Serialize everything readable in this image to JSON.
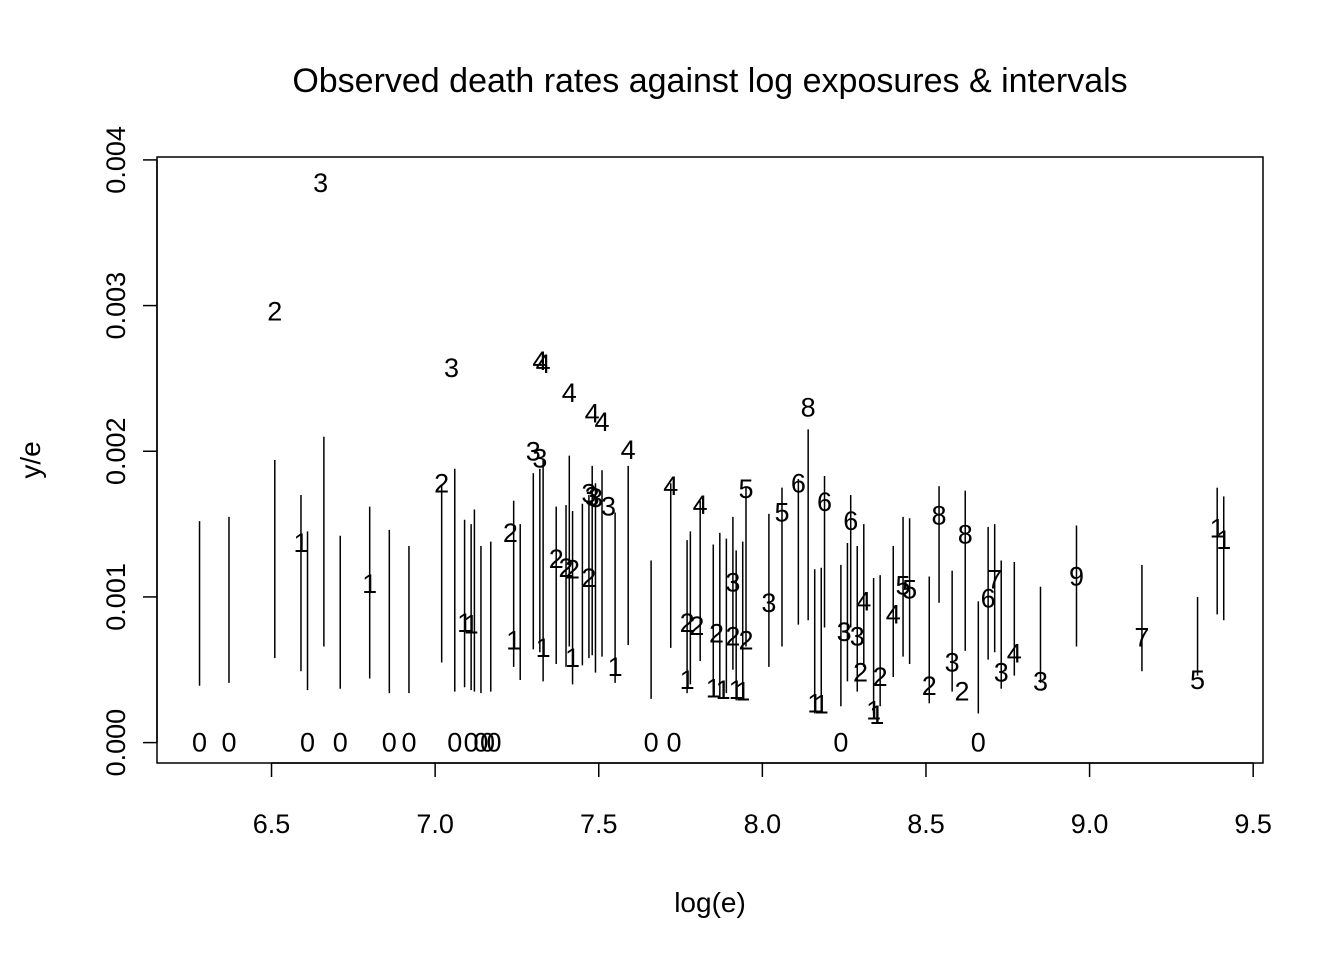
{
  "chart_data": {
    "type": "scatter",
    "title": "Observed death rates against log exposures & intervals",
    "xlabel": "log(e)",
    "ylabel": "y/e",
    "xlim": [
      6.15,
      9.53
    ],
    "ylim": [
      -0.00014,
      0.00402
    ],
    "x_ticks": [
      6.5,
      7.0,
      7.5,
      8.0,
      8.5,
      9.0,
      9.5
    ],
    "x_tick_labels": [
      "6.5",
      "7.0",
      "7.5",
      "8.0",
      "8.5",
      "9.0",
      "9.5"
    ],
    "y_ticks": [
      0.0,
      0.001,
      0.002,
      0.003,
      0.004
    ],
    "y_tick_labels": [
      "0.000",
      "0.001",
      "0.002",
      "0.003",
      "0.004"
    ],
    "grid": false,
    "points": [
      {
        "x": 6.28,
        "y": 0.0,
        "label": "0"
      },
      {
        "x": 6.37,
        "y": 0.0,
        "label": "0"
      },
      {
        "x": 6.61,
        "y": 0.0,
        "label": "0"
      },
      {
        "x": 6.71,
        "y": 0.0,
        "label": "0"
      },
      {
        "x": 6.86,
        "y": 0.0,
        "label": "0"
      },
      {
        "x": 6.92,
        "y": 0.0,
        "label": "0"
      },
      {
        "x": 7.06,
        "y": 0.0,
        "label": "0"
      },
      {
        "x": 7.11,
        "y": 0.0,
        "label": "0"
      },
      {
        "x": 7.14,
        "y": 0.0,
        "label": "0"
      },
      {
        "x": 7.16,
        "y": 0.0,
        "label": "0"
      },
      {
        "x": 7.18,
        "y": 0.0,
        "label": "0"
      },
      {
        "x": 7.66,
        "y": 0.0,
        "label": "0"
      },
      {
        "x": 7.73,
        "y": 0.0,
        "label": "0"
      },
      {
        "x": 8.24,
        "y": 0.0,
        "label": "0"
      },
      {
        "x": 8.66,
        "y": 0.0,
        "label": "0"
      },
      {
        "x": 6.59,
        "y": 0.00137,
        "label": "1"
      },
      {
        "x": 6.8,
        "y": 0.00109,
        "label": "1"
      },
      {
        "x": 7.09,
        "y": 0.00082,
        "label": "1"
      },
      {
        "x": 7.11,
        "y": 0.00081,
        "label": "1"
      },
      {
        "x": 7.24,
        "y": 0.0007,
        "label": "1"
      },
      {
        "x": 7.33,
        "y": 0.00065,
        "label": "1"
      },
      {
        "x": 7.42,
        "y": 0.00058,
        "label": "1"
      },
      {
        "x": 7.55,
        "y": 0.00052,
        "label": "1"
      },
      {
        "x": 7.77,
        "y": 0.00043,
        "label": "1"
      },
      {
        "x": 7.85,
        "y": 0.00037,
        "label": "1"
      },
      {
        "x": 7.88,
        "y": 0.00036,
        "label": "1"
      },
      {
        "x": 7.92,
        "y": 0.00036,
        "label": "1"
      },
      {
        "x": 7.94,
        "y": 0.00035,
        "label": "1"
      },
      {
        "x": 8.16,
        "y": 0.00027,
        "label": "1"
      },
      {
        "x": 8.18,
        "y": 0.00026,
        "label": "1"
      },
      {
        "x": 8.34,
        "y": 0.00022,
        "label": "1"
      },
      {
        "x": 8.35,
        "y": 0.00019,
        "label": "1"
      },
      {
        "x": 9.39,
        "y": 0.00147,
        "label": "1"
      },
      {
        "x": 9.41,
        "y": 0.00139,
        "label": "1"
      },
      {
        "x": 6.51,
        "y": 0.00296,
        "label": "2"
      },
      {
        "x": 7.02,
        "y": 0.00178,
        "label": "2"
      },
      {
        "x": 7.23,
        "y": 0.00144,
        "label": "2"
      },
      {
        "x": 7.37,
        "y": 0.00126,
        "label": "2"
      },
      {
        "x": 7.4,
        "y": 0.0012,
        "label": "2"
      },
      {
        "x": 7.42,
        "y": 0.00119,
        "label": "2"
      },
      {
        "x": 7.47,
        "y": 0.00113,
        "label": "2"
      },
      {
        "x": 7.77,
        "y": 0.00082,
        "label": "2"
      },
      {
        "x": 7.8,
        "y": 0.0008,
        "label": "2"
      },
      {
        "x": 7.86,
        "y": 0.00075,
        "label": "2"
      },
      {
        "x": 7.91,
        "y": 0.00073,
        "label": "2"
      },
      {
        "x": 7.95,
        "y": 0.0007,
        "label": "2"
      },
      {
        "x": 8.3,
        "y": 0.00048,
        "label": "2"
      },
      {
        "x": 8.36,
        "y": 0.00045,
        "label": "2"
      },
      {
        "x": 8.51,
        "y": 0.00039,
        "label": "2"
      },
      {
        "x": 8.61,
        "y": 0.00035,
        "label": "2"
      },
      {
        "x": 6.65,
        "y": 0.00384,
        "label": "3"
      },
      {
        "x": 7.05,
        "y": 0.00257,
        "label": "3"
      },
      {
        "x": 7.3,
        "y": 0.002,
        "label": "3"
      },
      {
        "x": 7.32,
        "y": 0.00195,
        "label": "3"
      },
      {
        "x": 7.47,
        "y": 0.00171,
        "label": "3"
      },
      {
        "x": 7.48,
        "y": 0.00169,
        "label": "3"
      },
      {
        "x": 7.49,
        "y": 0.00168,
        "label": "3"
      },
      {
        "x": 7.53,
        "y": 0.00162,
        "label": "3"
      },
      {
        "x": 7.91,
        "y": 0.0011,
        "label": "3"
      },
      {
        "x": 8.02,
        "y": 0.00096,
        "label": "3"
      },
      {
        "x": 8.25,
        "y": 0.00076,
        "label": "3"
      },
      {
        "x": 8.29,
        "y": 0.00073,
        "label": "3"
      },
      {
        "x": 8.58,
        "y": 0.00055,
        "label": "3"
      },
      {
        "x": 8.73,
        "y": 0.00048,
        "label": "3"
      },
      {
        "x": 8.85,
        "y": 0.00042,
        "label": "3"
      },
      {
        "x": 7.32,
        "y": 0.00262,
        "label": "4"
      },
      {
        "x": 7.33,
        "y": 0.0026,
        "label": "4"
      },
      {
        "x": 7.41,
        "y": 0.0024,
        "label": "4"
      },
      {
        "x": 7.48,
        "y": 0.00226,
        "label": "4"
      },
      {
        "x": 7.51,
        "y": 0.0022,
        "label": "4"
      },
      {
        "x": 7.59,
        "y": 0.00201,
        "label": "4"
      },
      {
        "x": 7.72,
        "y": 0.00176,
        "label": "4"
      },
      {
        "x": 7.81,
        "y": 0.00163,
        "label": "4"
      },
      {
        "x": 8.31,
        "y": 0.00097,
        "label": "4"
      },
      {
        "x": 8.4,
        "y": 0.00088,
        "label": "4"
      },
      {
        "x": 8.77,
        "y": 0.00061,
        "label": "4"
      },
      {
        "x": 7.95,
        "y": 0.00174,
        "label": "5"
      },
      {
        "x": 8.06,
        "y": 0.00158,
        "label": "5"
      },
      {
        "x": 8.43,
        "y": 0.00108,
        "label": "5"
      },
      {
        "x": 8.45,
        "y": 0.00105,
        "label": "5"
      },
      {
        "x": 9.33,
        "y": 0.00043,
        "label": "5"
      },
      {
        "x": 8.11,
        "y": 0.00178,
        "label": "6"
      },
      {
        "x": 8.19,
        "y": 0.00165,
        "label": "6"
      },
      {
        "x": 8.27,
        "y": 0.00152,
        "label": "6"
      },
      {
        "x": 8.69,
        "y": 0.00099,
        "label": "6"
      },
      {
        "x": 8.71,
        "y": 0.00112,
        "label": "7"
      },
      {
        "x": 9.16,
        "y": 0.00072,
        "label": "7"
      },
      {
        "x": 8.14,
        "y": 0.0023,
        "label": "8"
      },
      {
        "x": 8.54,
        "y": 0.00156,
        "label": "8"
      },
      {
        "x": 8.62,
        "y": 0.00143,
        "label": "8"
      },
      {
        "x": 8.96,
        "y": 0.00114,
        "label": "9"
      }
    ],
    "intervals": [
      {
        "x": 6.28,
        "lo": 0.00039,
        "hi": 0.00152
      },
      {
        "x": 6.37,
        "lo": 0.00041,
        "hi": 0.00155
      },
      {
        "x": 6.51,
        "lo": 0.00058,
        "hi": 0.00194
      },
      {
        "x": 6.59,
        "lo": 0.00049,
        "hi": 0.0017
      },
      {
        "x": 6.61,
        "lo": 0.00036,
        "hi": 0.00145
      },
      {
        "x": 6.66,
        "lo": 0.00066,
        "hi": 0.0021
      },
      {
        "x": 6.71,
        "lo": 0.00037,
        "hi": 0.00142
      },
      {
        "x": 6.8,
        "lo": 0.00044,
        "hi": 0.00162
      },
      {
        "x": 6.86,
        "lo": 0.00034,
        "hi": 0.00146
      },
      {
        "x": 6.92,
        "lo": 0.00034,
        "hi": 0.00135
      },
      {
        "x": 7.02,
        "lo": 0.00055,
        "hi": 0.00177
      },
      {
        "x": 7.06,
        "lo": 0.00035,
        "hi": 0.00188
      },
      {
        "x": 7.09,
        "lo": 0.00038,
        "hi": 0.00153
      },
      {
        "x": 7.11,
        "lo": 0.00036,
        "hi": 0.0015
      },
      {
        "x": 7.12,
        "lo": 0.00035,
        "hi": 0.0016
      },
      {
        "x": 7.14,
        "lo": 0.00034,
        "hi": 0.00135
      },
      {
        "x": 7.17,
        "lo": 0.00035,
        "hi": 0.00138
      },
      {
        "x": 7.24,
        "lo": 0.00052,
        "hi": 0.00166
      },
      {
        "x": 7.26,
        "lo": 0.00043,
        "hi": 0.0015
      },
      {
        "x": 7.3,
        "lo": 0.00064,
        "hi": 0.00185
      },
      {
        "x": 7.32,
        "lo": 0.00062,
        "hi": 0.00188
      },
      {
        "x": 7.33,
        "lo": 0.00042,
        "hi": 0.00195
      },
      {
        "x": 7.37,
        "lo": 0.00054,
        "hi": 0.00162
      },
      {
        "x": 7.4,
        "lo": 0.00052,
        "hi": 0.00163
      },
      {
        "x": 7.41,
        "lo": 0.00066,
        "hi": 0.00197
      },
      {
        "x": 7.42,
        "lo": 0.0004,
        "hi": 0.00159
      },
      {
        "x": 7.45,
        "lo": 0.00053,
        "hi": 0.00164
      },
      {
        "x": 7.47,
        "lo": 0.00058,
        "hi": 0.0017
      },
      {
        "x": 7.48,
        "lo": 0.0006,
        "hi": 0.0019
      },
      {
        "x": 7.49,
        "lo": 0.00048,
        "hi": 0.00178
      },
      {
        "x": 7.51,
        "lo": 0.00059,
        "hi": 0.00187
      },
      {
        "x": 7.55,
        "lo": 0.00041,
        "hi": 0.00158
      },
      {
        "x": 7.59,
        "lo": 0.00067,
        "hi": 0.0019
      },
      {
        "x": 7.66,
        "lo": 0.0003,
        "hi": 0.00125
      },
      {
        "x": 7.72,
        "lo": 0.00065,
        "hi": 0.00178
      },
      {
        "x": 7.77,
        "lo": 0.00034,
        "hi": 0.00139
      },
      {
        "x": 7.78,
        "lo": 0.0004,
        "hi": 0.00145
      },
      {
        "x": 7.81,
        "lo": 0.00056,
        "hi": 0.00166
      },
      {
        "x": 7.85,
        "lo": 0.00031,
        "hi": 0.00136
      },
      {
        "x": 7.87,
        "lo": 0.0003,
        "hi": 0.00144
      },
      {
        "x": 7.89,
        "lo": 0.00034,
        "hi": 0.0014
      },
      {
        "x": 7.91,
        "lo": 0.0005,
        "hi": 0.00155
      },
      {
        "x": 7.92,
        "lo": 0.00029,
        "hi": 0.00132
      },
      {
        "x": 7.94,
        "lo": 0.00032,
        "hi": 0.00138
      },
      {
        "x": 7.95,
        "lo": 0.00066,
        "hi": 0.00175
      },
      {
        "x": 8.02,
        "lo": 0.00052,
        "hi": 0.00157
      },
      {
        "x": 8.06,
        "lo": 0.00066,
        "hi": 0.00175
      },
      {
        "x": 8.11,
        "lo": 0.00081,
        "hi": 0.00181
      },
      {
        "x": 8.14,
        "lo": 0.00084,
        "hi": 0.00215
      },
      {
        "x": 8.16,
        "lo": 0.0002,
        "hi": 0.00119
      },
      {
        "x": 8.18,
        "lo": 0.00022,
        "hi": 0.0012
      },
      {
        "x": 8.19,
        "lo": 0.00079,
        "hi": 0.00183
      },
      {
        "x": 8.24,
        "lo": 0.00025,
        "hi": 0.00122
      },
      {
        "x": 8.26,
        "lo": 0.00042,
        "hi": 0.00137
      },
      {
        "x": 8.27,
        "lo": 0.00079,
        "hi": 0.0017
      },
      {
        "x": 8.29,
        "lo": 0.00035,
        "hi": 0.00135
      },
      {
        "x": 8.31,
        "lo": 0.00052,
        "hi": 0.0015
      },
      {
        "x": 8.34,
        "lo": 0.0002,
        "hi": 0.00113
      },
      {
        "x": 8.36,
        "lo": 0.00025,
        "hi": 0.00115
      },
      {
        "x": 8.4,
        "lo": 0.00045,
        "hi": 0.00135
      },
      {
        "x": 8.43,
        "lo": 0.00059,
        "hi": 0.00155
      },
      {
        "x": 8.45,
        "lo": 0.00054,
        "hi": 0.00154
      },
      {
        "x": 8.51,
        "lo": 0.00027,
        "hi": 0.00114
      },
      {
        "x": 8.54,
        "lo": 0.00096,
        "hi": 0.00176
      },
      {
        "x": 8.58,
        "lo": 0.00035,
        "hi": 0.00118
      },
      {
        "x": 8.62,
        "lo": 0.00063,
        "hi": 0.00173
      },
      {
        "x": 8.66,
        "lo": 0.0002,
        "hi": 0.00097
      },
      {
        "x": 8.69,
        "lo": 0.00057,
        "hi": 0.00148
      },
      {
        "x": 8.71,
        "lo": 0.00062,
        "hi": 0.0015
      },
      {
        "x": 8.73,
        "lo": 0.00037,
        "hi": 0.00125
      },
      {
        "x": 8.77,
        "lo": 0.00046,
        "hi": 0.00124
      },
      {
        "x": 8.85,
        "lo": 0.00041,
        "hi": 0.00107
      },
      {
        "x": 8.96,
        "lo": 0.00066,
        "hi": 0.00149
      },
      {
        "x": 9.16,
        "lo": 0.00049,
        "hi": 0.00122
      },
      {
        "x": 9.33,
        "lo": 0.00046,
        "hi": 0.001
      },
      {
        "x": 9.39,
        "lo": 0.00088,
        "hi": 0.00175
      },
      {
        "x": 9.41,
        "lo": 0.00084,
        "hi": 0.00169
      }
    ]
  }
}
